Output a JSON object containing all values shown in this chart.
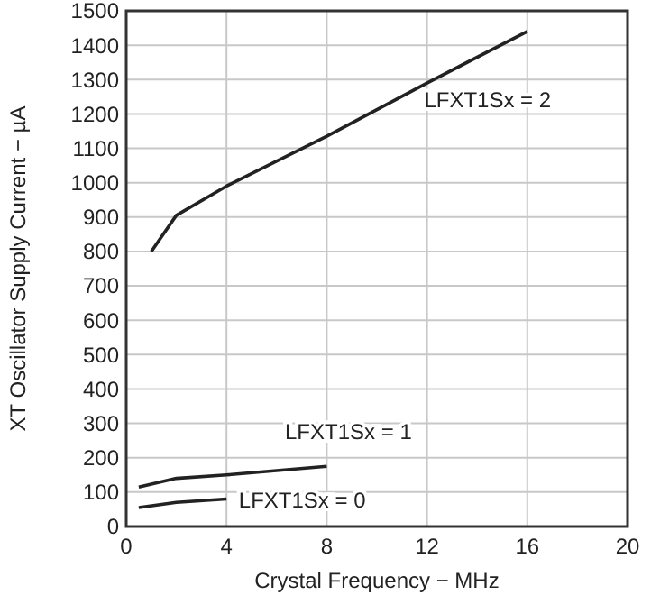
{
  "chart_data": {
    "type": "line",
    "xlabel": "Crystal Frequency − MHz",
    "ylabel": "XT Oscillator Supply Current − µA",
    "xlim": [
      0,
      20
    ],
    "xticks": [
      0,
      4,
      8,
      12,
      16,
      20
    ],
    "ylim": [
      0,
      1500
    ],
    "yticks": [
      0,
      100,
      200,
      300,
      400,
      500,
      600,
      700,
      800,
      900,
      1000,
      1100,
      1200,
      1300,
      1400,
      1500
    ],
    "grid": true,
    "marker": "none",
    "line_style": "solid",
    "series": [
      {
        "name": "LFXT1Sx = 2",
        "color": "#222222",
        "x": [
          1,
          2,
          4,
          8,
          12,
          16
        ],
        "values": [
          800,
          905,
          990,
          1135,
          1290,
          1440
        ]
      },
      {
        "name": "LFXT1Sx = 1",
        "color": "#222222",
        "x": [
          0.5,
          2,
          4,
          8
        ],
        "values": [
          115,
          140,
          150,
          175
        ]
      },
      {
        "name": "LFXT1Sx = 0",
        "color": "#222222",
        "x": [
          0.5,
          2,
          4
        ],
        "values": [
          55,
          70,
          80
        ]
      }
    ]
  }
}
